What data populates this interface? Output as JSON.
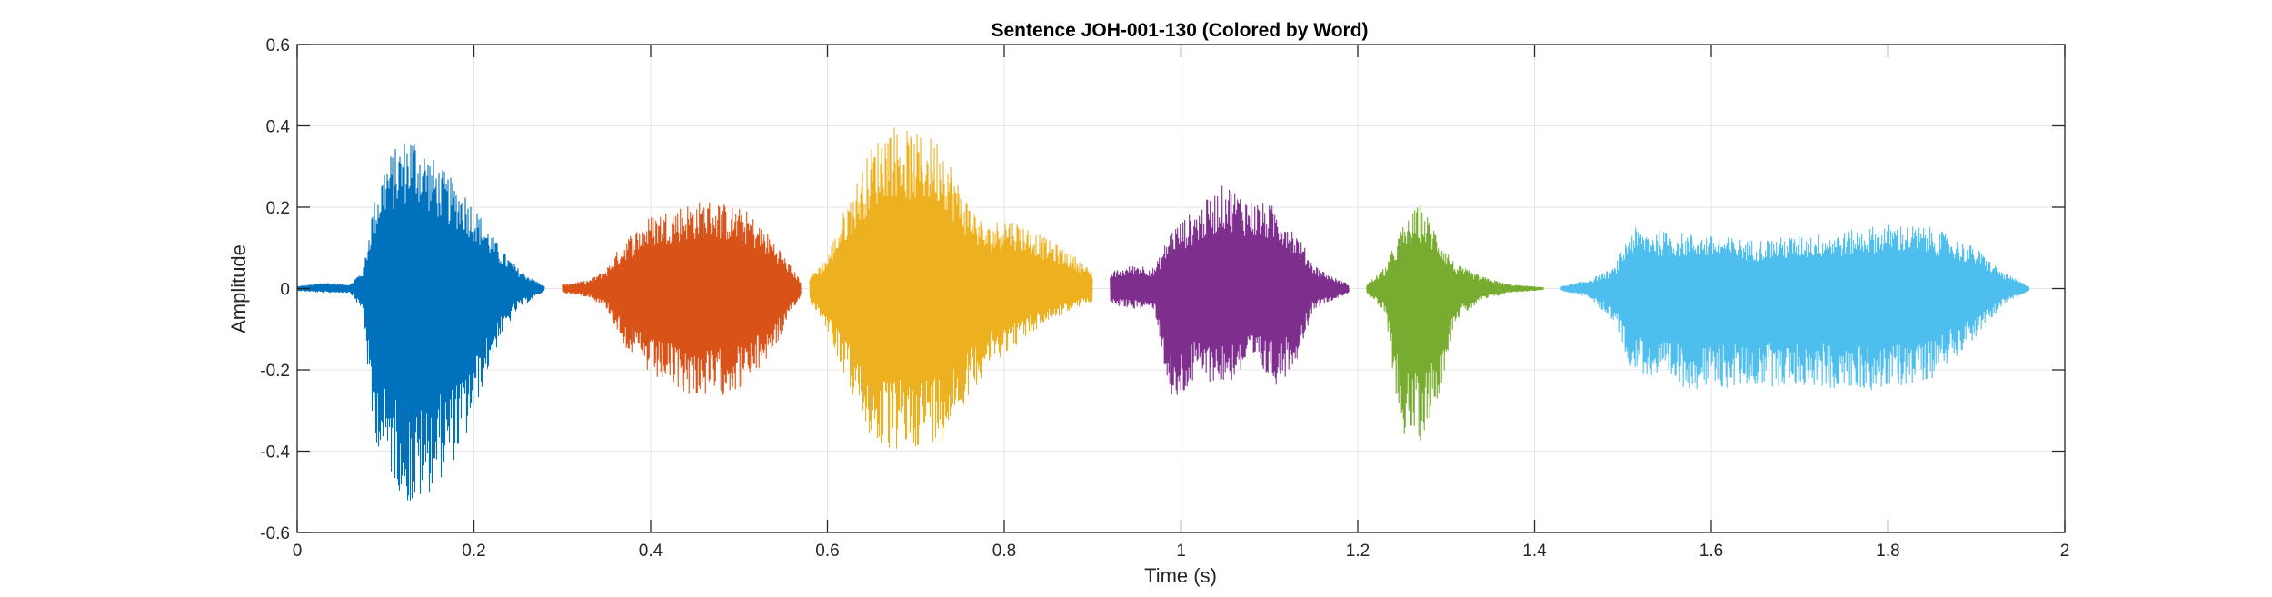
{
  "chart_data": {
    "type": "line",
    "title": "Sentence JOH-001-130 (Colored by Word)",
    "xlabel": "Time (s)",
    "ylabel": "Amplitude",
    "xlim": [
      0,
      2
    ],
    "ylim": [
      -0.6,
      0.6
    ],
    "xticks": [
      0,
      0.2,
      0.4,
      0.6,
      0.8,
      1,
      1.2,
      1.4,
      1.6,
      1.8,
      2
    ],
    "xtick_labels": [
      "0",
      "0.2",
      "0.4",
      "0.6",
      "0.8",
      "1",
      "1.2",
      "1.4",
      "1.6",
      "1.8",
      "2"
    ],
    "yticks": [
      -0.6,
      -0.4,
      -0.2,
      0,
      0.2,
      0.4,
      0.6
    ],
    "ytick_labels": [
      "-0.6",
      "-0.4",
      "-0.2",
      "0",
      "0.2",
      "0.4",
      "0.6"
    ],
    "grid": true,
    "series": [
      {
        "color": "#0072BD",
        "t_start": 0.0,
        "t_end": 0.28,
        "envelope": [
          [
            0.0,
            0.005
          ],
          [
            0.03,
            0.015
          ],
          [
            0.06,
            0.01
          ],
          [
            0.075,
            0.05
          ],
          [
            0.085,
            0.2
          ],
          [
            0.1,
            0.32
          ],
          [
            0.13,
            0.39
          ],
          [
            0.15,
            0.33
          ],
          [
            0.17,
            0.28
          ],
          [
            0.19,
            0.24
          ],
          [
            0.21,
            0.17
          ],
          [
            0.23,
            0.1
          ],
          [
            0.25,
            0.05
          ],
          [
            0.28,
            0.005
          ]
        ],
        "envelope_neg": [
          [
            0.0,
            -0.005
          ],
          [
            0.03,
            -0.01
          ],
          [
            0.06,
            -0.01
          ],
          [
            0.075,
            -0.06
          ],
          [
            0.085,
            -0.35
          ],
          [
            0.1,
            -0.44
          ],
          [
            0.13,
            -0.55
          ],
          [
            0.15,
            -0.5
          ],
          [
            0.17,
            -0.45
          ],
          [
            0.19,
            -0.38
          ],
          [
            0.21,
            -0.24
          ],
          [
            0.23,
            -0.12
          ],
          [
            0.25,
            -0.05
          ],
          [
            0.28,
            -0.005
          ]
        ]
      },
      {
        "color": "#D95319",
        "t_start": 0.3,
        "t_end": 0.57,
        "envelope": [
          [
            0.3,
            0.01
          ],
          [
            0.33,
            0.02
          ],
          [
            0.35,
            0.05
          ],
          [
            0.37,
            0.12
          ],
          [
            0.4,
            0.18
          ],
          [
            0.44,
            0.21
          ],
          [
            0.47,
            0.22
          ],
          [
            0.51,
            0.19
          ],
          [
            0.54,
            0.12
          ],
          [
            0.56,
            0.05
          ],
          [
            0.57,
            0.02
          ]
        ],
        "envelope_neg": [
          [
            0.3,
            -0.01
          ],
          [
            0.33,
            -0.02
          ],
          [
            0.35,
            -0.05
          ],
          [
            0.37,
            -0.14
          ],
          [
            0.4,
            -0.22
          ],
          [
            0.44,
            -0.26
          ],
          [
            0.47,
            -0.27
          ],
          [
            0.51,
            -0.24
          ],
          [
            0.54,
            -0.15
          ],
          [
            0.56,
            -0.06
          ],
          [
            0.57,
            -0.02
          ]
        ]
      },
      {
        "color": "#EDB120",
        "t_start": 0.58,
        "t_end": 0.9,
        "envelope": [
          [
            0.58,
            0.03
          ],
          [
            0.6,
            0.08
          ],
          [
            0.62,
            0.2
          ],
          [
            0.65,
            0.35
          ],
          [
            0.67,
            0.41
          ],
          [
            0.7,
            0.38
          ],
          [
            0.73,
            0.37
          ],
          [
            0.75,
            0.25
          ],
          [
            0.78,
            0.15
          ],
          [
            0.8,
            0.18
          ],
          [
            0.82,
            0.16
          ],
          [
            0.85,
            0.12
          ],
          [
            0.88,
            0.08
          ],
          [
            0.9,
            0.04
          ]
        ],
        "envelope_neg": [
          [
            0.58,
            -0.03
          ],
          [
            0.6,
            -0.1
          ],
          [
            0.62,
            -0.22
          ],
          [
            0.65,
            -0.38
          ],
          [
            0.67,
            -0.41
          ],
          [
            0.7,
            -0.39
          ],
          [
            0.73,
            -0.37
          ],
          [
            0.75,
            -0.3
          ],
          [
            0.78,
            -0.2
          ],
          [
            0.8,
            -0.16
          ],
          [
            0.82,
            -0.13
          ],
          [
            0.85,
            -0.08
          ],
          [
            0.88,
            -0.05
          ],
          [
            0.9,
            -0.03
          ]
        ]
      },
      {
        "color": "#7E2F8E",
        "t_start": 0.92,
        "t_end": 1.19,
        "envelope": [
          [
            0.92,
            0.04
          ],
          [
            0.95,
            0.06
          ],
          [
            0.97,
            0.05
          ],
          [
            0.99,
            0.15
          ],
          [
            1.02,
            0.2
          ],
          [
            1.05,
            0.26
          ],
          [
            1.08,
            0.22
          ],
          [
            1.11,
            0.2
          ],
          [
            1.13,
            0.14
          ],
          [
            1.15,
            0.06
          ],
          [
            1.17,
            0.03
          ],
          [
            1.19,
            0.01
          ]
        ],
        "envelope_neg": [
          [
            0.92,
            -0.04
          ],
          [
            0.95,
            -0.05
          ],
          [
            0.97,
            -0.05
          ],
          [
            0.99,
            -0.3
          ],
          [
            1.02,
            -0.22
          ],
          [
            1.05,
            -0.24
          ],
          [
            1.08,
            -0.19
          ],
          [
            1.11,
            -0.24
          ],
          [
            1.13,
            -0.18
          ],
          [
            1.15,
            -0.05
          ],
          [
            1.17,
            -0.03
          ],
          [
            1.19,
            -0.01
          ]
        ]
      },
      {
        "color": "#77AC30",
        "t_start": 1.21,
        "t_end": 1.41,
        "envelope": [
          [
            1.21,
            0.01
          ],
          [
            1.23,
            0.05
          ],
          [
            1.25,
            0.15
          ],
          [
            1.27,
            0.21
          ],
          [
            1.29,
            0.14
          ],
          [
            1.31,
            0.06
          ],
          [
            1.34,
            0.03
          ],
          [
            1.37,
            0.01
          ],
          [
            1.41,
            0.003
          ]
        ],
        "envelope_neg": [
          [
            1.21,
            -0.01
          ],
          [
            1.23,
            -0.06
          ],
          [
            1.25,
            -0.36
          ],
          [
            1.27,
            -0.38
          ],
          [
            1.29,
            -0.28
          ],
          [
            1.31,
            -0.08
          ],
          [
            1.34,
            -0.03
          ],
          [
            1.37,
            -0.01
          ],
          [
            1.41,
            -0.003
          ]
        ]
      },
      {
        "color": "#4DBEEE",
        "t_start": 1.43,
        "t_end": 1.96,
        "envelope": [
          [
            1.43,
            0.005
          ],
          [
            1.46,
            0.02
          ],
          [
            1.49,
            0.05
          ],
          [
            1.51,
            0.15
          ],
          [
            1.55,
            0.14
          ],
          [
            1.6,
            0.13
          ],
          [
            1.65,
            0.12
          ],
          [
            1.7,
            0.13
          ],
          [
            1.75,
            0.14
          ],
          [
            1.8,
            0.16
          ],
          [
            1.85,
            0.15
          ],
          [
            1.9,
            0.1
          ],
          [
            1.93,
            0.04
          ],
          [
            1.96,
            0.005
          ]
        ],
        "envelope_neg": [
          [
            1.43,
            -0.005
          ],
          [
            1.46,
            -0.02
          ],
          [
            1.49,
            -0.08
          ],
          [
            1.51,
            -0.2
          ],
          [
            1.55,
            -0.24
          ],
          [
            1.6,
            -0.25
          ],
          [
            1.65,
            -0.24
          ],
          [
            1.7,
            -0.24
          ],
          [
            1.75,
            -0.25
          ],
          [
            1.8,
            -0.25
          ],
          [
            1.85,
            -0.22
          ],
          [
            1.9,
            -0.12
          ],
          [
            1.93,
            -0.04
          ],
          [
            1.96,
            -0.005
          ]
        ]
      }
    ]
  }
}
